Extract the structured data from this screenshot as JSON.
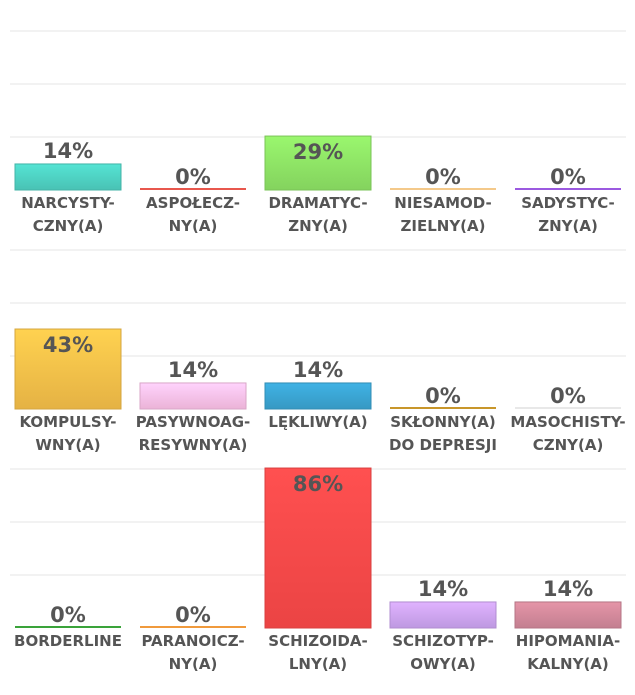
{
  "chart_data": {
    "type": "bar",
    "title": "",
    "xlabel": "",
    "ylabel": "",
    "ylim": [
      0,
      100
    ],
    "grid": true,
    "value_suffix": "%",
    "rows": [
      {
        "bars": [
          {
            "label_lines": [
              "NARCYSTY-",
              "CZNY(A)"
            ],
            "value": 14,
            "value_label": "14%",
            "color": "#4fd3c4"
          },
          {
            "label_lines": [
              "ASPOŁECZ-",
              "NY(A)"
            ],
            "value": 0,
            "value_label": "0%",
            "color": "#e8574d"
          },
          {
            "label_lines": [
              "DRAMATYC-",
              "ZNY(A)"
            ],
            "value": 29,
            "value_label": "29%",
            "color": "#8fe566"
          },
          {
            "label_lines": [
              "NIESAMOD-",
              "ZIELNY(A)"
            ],
            "value": 0,
            "value_label": "0%",
            "color": "#f4c98a"
          },
          {
            "label_lines": [
              "SADYSTYC-",
              "ZNY(A)"
            ],
            "value": 0,
            "value_label": "0%",
            "color": "#9b59e0"
          }
        ]
      },
      {
        "bars": [
          {
            "label_lines": [
              "KOMPULSY-",
              "WNY(A)"
            ],
            "value": 43,
            "value_label": "43%",
            "color": "#f9c24a"
          },
          {
            "label_lines": [
              "PASYWNOAG-",
              "RESYWNY(A)"
            ],
            "value": 14,
            "value_label": "14%",
            "color": "#ffc3ea"
          },
          {
            "label_lines": [
              "LĘKLIWY(A)"
            ],
            "value": 14,
            "value_label": "14%",
            "color": "#3ba6d4"
          },
          {
            "label_lines": [
              "SKŁONNY(A)",
              "DO DEPRESJI"
            ],
            "value": 0,
            "value_label": "0%",
            "color": "#c8962a"
          },
          {
            "label_lines": [
              "MASOCHISTY-",
              "CZNY(A)"
            ],
            "value": 0,
            "value_label": "0%",
            "color": "#e8e8e8"
          }
        ]
      },
      {
        "bars": [
          {
            "label_lines": [
              "BORDERLINE"
            ],
            "value": 0,
            "value_label": "0%",
            "color": "#3aa33a"
          },
          {
            "label_lines": [
              "PARANOICZ-",
              "NY(A)"
            ],
            "value": 0,
            "value_label": "0%",
            "color": "#f09a3c"
          },
          {
            "label_lines": [
              "SCHIZOIDA-",
              "LNY(A)"
            ],
            "value": 86,
            "value_label": "86%",
            "color": "#ff4a4a"
          },
          {
            "label_lines": [
              "SCHIZOTYP-",
              "OWY(A)"
            ],
            "value": 14,
            "value_label": "14%",
            "color": "#cfa6f5"
          },
          {
            "label_lines": [
              "HIPOMANIA-",
              "KALNY(A)"
            ],
            "value": 14,
            "value_label": "14%",
            "color": "#d48a9c"
          }
        ]
      }
    ]
  }
}
